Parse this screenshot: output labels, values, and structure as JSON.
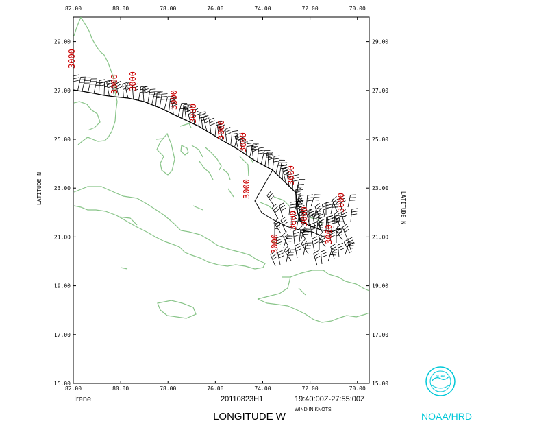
{
  "map": {
    "storm_name": "Irene",
    "flight_id": "20110823H1",
    "time_range": "19:40:00Z-27:55:00Z",
    "wind_units": "WIND IN KNOTS",
    "x_axis_title": "LONGITUDE   W",
    "y_axis_title": "LATITUDE   N",
    "lon_ticks": [
      "82.00",
      "80.00",
      "78.00",
      "76.00",
      "74.00",
      "72.00",
      "70.00"
    ],
    "lat_ticks": [
      "29.00",
      "27.00",
      "25.00",
      "23.00",
      "21.00",
      "19.00",
      "17.00",
      "15.00"
    ],
    "lon_range": [
      82.0,
      69.5
    ],
    "lat_range": [
      15.0,
      30.0
    ],
    "altitude_labels": [
      "3000",
      "3000",
      "3000",
      "3000",
      "3000",
      "3000",
      "3000",
      "3000",
      "3000",
      "3000",
      "3000",
      "3000",
      "3000",
      "3000"
    ],
    "coast_color": "#88c488",
    "label_color": "#cc0000",
    "track_color": "#000000",
    "logo_color": "#00c8d8"
  },
  "logo": {
    "org": "NOAA/HRD",
    "inner_text": "NOAA"
  }
}
